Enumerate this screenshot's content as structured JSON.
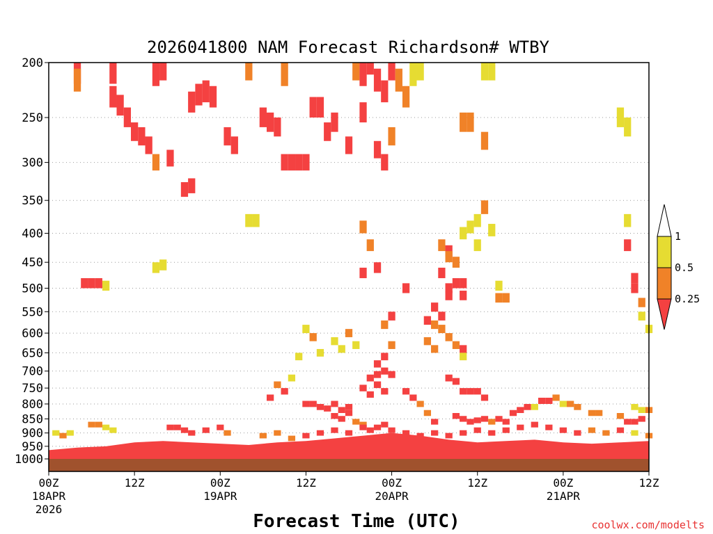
{
  "chart_data": {
    "type": "heatmap",
    "title": "2026041800 NAM Forecast Richardson# WTBY",
    "xlabel": "Forecast Time (UTC)",
    "ylabel": "",
    "credit": "coolwx.com/modelts",
    "x_range_hours": [
      0,
      84
    ],
    "y_range_hpa": [
      200,
      1000
    ],
    "y_scale": "pressure",
    "grid": "dotted horizontal",
    "y_ticks": [
      200,
      250,
      300,
      350,
      400,
      450,
      500,
      550,
      600,
      650,
      700,
      750,
      800,
      850,
      900,
      950,
      1000
    ],
    "y_tick_labels": [
      "200",
      "250",
      "300",
      "350",
      "400",
      "450",
      "500",
      "550",
      "600",
      "650",
      "700",
      "750",
      "800",
      "850",
      "900",
      "950",
      "1000"
    ],
    "x_ticks": [
      {
        "hour": 0,
        "lines": [
          "00Z",
          "18APR",
          "2026"
        ]
      },
      {
        "hour": 12,
        "lines": [
          "12Z"
        ]
      },
      {
        "hour": 24,
        "lines": [
          "00Z",
          "19APR"
        ]
      },
      {
        "hour": 36,
        "lines": [
          "12Z"
        ]
      },
      {
        "hour": 48,
        "lines": [
          "00Z",
          "20APR"
        ]
      },
      {
        "hour": 60,
        "lines": [
          "12Z"
        ]
      },
      {
        "hour": 72,
        "lines": [
          "00Z",
          "21APR"
        ]
      },
      {
        "hour": 84,
        "lines": [
          "12Z"
        ]
      }
    ],
    "legend": {
      "placement": "right",
      "bins": [
        {
          "range": "<0.25",
          "color": "#f44141"
        },
        {
          "range": "0.25-0.5",
          "color": "#f08228"
        },
        {
          "range": "0.5-1",
          "color": "#e6dc32"
        },
        {
          "range": ">1",
          "color": "#ffffff"
        }
      ],
      "labels": [
        "1",
        "0.5",
        "0.25"
      ]
    },
    "surface": {
      "pressure_hpa": 1000,
      "color": "#a0522d"
    },
    "cells": [
      {
        "h": 4,
        "p": 208,
        "c": 1
      },
      {
        "h": 4,
        "p": 215,
        "c": 2
      },
      {
        "h": 9,
        "p": 208,
        "c": 1
      },
      {
        "h": 9,
        "p": 230,
        "c": 1
      },
      {
        "h": 10,
        "p": 238,
        "c": 1
      },
      {
        "h": 11,
        "p": 250,
        "c": 1
      },
      {
        "h": 12,
        "p": 265,
        "c": 1
      },
      {
        "h": 13,
        "p": 270,
        "c": 1
      },
      {
        "h": 14,
        "p": 280,
        "c": 1
      },
      {
        "h": 15,
        "p": 210,
        "c": 1
      },
      {
        "h": 16,
        "p": 205,
        "c": 1
      },
      {
        "h": 15,
        "p": 300,
        "c": 2
      },
      {
        "h": 17,
        "p": 295,
        "c": 1
      },
      {
        "h": 19,
        "p": 335,
        "c": 1
      },
      {
        "h": 20,
        "p": 330,
        "c": 1
      },
      {
        "h": 20,
        "p": 235,
        "c": 1
      },
      {
        "h": 21,
        "p": 228,
        "c": 1
      },
      {
        "h": 22,
        "p": 225,
        "c": 1
      },
      {
        "h": 23,
        "p": 230,
        "c": 1
      },
      {
        "h": 25,
        "p": 270,
        "c": 1
      },
      {
        "h": 26,
        "p": 280,
        "c": 1
      },
      {
        "h": 28,
        "p": 205,
        "c": 2
      },
      {
        "h": 30,
        "p": 250,
        "c": 1
      },
      {
        "h": 31,
        "p": 255,
        "c": 1
      },
      {
        "h": 32,
        "p": 260,
        "c": 1
      },
      {
        "h": 33,
        "p": 210,
        "c": 2
      },
      {
        "h": 33,
        "p": 300,
        "c": 1
      },
      {
        "h": 34,
        "p": 300,
        "c": 1
      },
      {
        "h": 35,
        "p": 300,
        "c": 1
      },
      {
        "h": 36,
        "p": 300,
        "c": 1
      },
      {
        "h": 37,
        "p": 240,
        "c": 1
      },
      {
        "h": 38,
        "p": 240,
        "c": 1
      },
      {
        "h": 39,
        "p": 265,
        "c": 1
      },
      {
        "h": 40,
        "p": 255,
        "c": 1
      },
      {
        "h": 42,
        "p": 280,
        "c": 1
      },
      {
        "h": 44,
        "p": 245,
        "c": 1
      },
      {
        "h": 43,
        "p": 205,
        "c": 2
      },
      {
        "h": 44,
        "p": 210,
        "c": 1
      },
      {
        "h": 45,
        "p": 200,
        "c": 1
      },
      {
        "h": 46,
        "p": 215,
        "c": 1
      },
      {
        "h": 47,
        "p": 225,
        "c": 1
      },
      {
        "h": 48,
        "p": 205,
        "c": 1
      },
      {
        "h": 46,
        "p": 285,
        "c": 1
      },
      {
        "h": 47,
        "p": 300,
        "c": 1
      },
      {
        "h": 48,
        "p": 270,
        "c": 2
      },
      {
        "h": 49,
        "p": 215,
        "c": 2
      },
      {
        "h": 50,
        "p": 230,
        "c": 2
      },
      {
        "h": 51,
        "p": 210,
        "c": 3
      },
      {
        "h": 52,
        "p": 205,
        "c": 3
      },
      {
        "h": 58,
        "p": 255,
        "c": 2
      },
      {
        "h": 59,
        "p": 255,
        "c": 2
      },
      {
        "h": 61,
        "p": 275,
        "c": 2
      },
      {
        "h": 61,
        "p": 205,
        "c": 3
      },
      {
        "h": 62,
        "p": 205,
        "c": 3
      },
      {
        "h": 5,
        "p": 490,
        "c": 1
      },
      {
        "h": 6,
        "p": 490,
        "c": 1
      },
      {
        "h": 7,
        "p": 490,
        "c": 1
      },
      {
        "h": 8,
        "p": 495,
        "c": 3
      },
      {
        "h": 15,
        "p": 460,
        "c": 3
      },
      {
        "h": 16,
        "p": 455,
        "c": 3
      },
      {
        "h": 28,
        "p": 380,
        "c": 3
      },
      {
        "h": 29,
        "p": 380,
        "c": 3
      },
      {
        "h": 44,
        "p": 390,
        "c": 2
      },
      {
        "h": 45,
        "p": 420,
        "c": 2
      },
      {
        "h": 44,
        "p": 470,
        "c": 1
      },
      {
        "h": 46,
        "p": 460,
        "c": 1
      },
      {
        "h": 55,
        "p": 420,
        "c": 2
      },
      {
        "h": 56,
        "p": 430,
        "c": 1
      },
      {
        "h": 55,
        "p": 470,
        "c": 1
      },
      {
        "h": 56,
        "p": 500,
        "c": 1
      },
      {
        "h": 57,
        "p": 490,
        "c": 1
      },
      {
        "h": 58,
        "p": 490,
        "c": 1
      },
      {
        "h": 56,
        "p": 515,
        "c": 1
      },
      {
        "h": 58,
        "p": 515,
        "c": 1
      },
      {
        "h": 56,
        "p": 440,
        "c": 2
      },
      {
        "h": 57,
        "p": 450,
        "c": 2
      },
      {
        "h": 58,
        "p": 400,
        "c": 3
      },
      {
        "h": 59,
        "p": 390,
        "c": 3
      },
      {
        "h": 60,
        "p": 380,
        "c": 3
      },
      {
        "h": 60,
        "p": 420,
        "c": 3
      },
      {
        "h": 61,
        "p": 360,
        "c": 2
      },
      {
        "h": 62,
        "p": 395,
        "c": 3
      },
      {
        "h": 63,
        "p": 520,
        "c": 2
      },
      {
        "h": 64,
        "p": 520,
        "c": 2
      },
      {
        "h": 63,
        "p": 495,
        "c": 3
      },
      {
        "h": 54,
        "p": 540,
        "c": 1
      },
      {
        "h": 55,
        "p": 560,
        "c": 1
      },
      {
        "h": 53,
        "p": 570,
        "c": 1
      },
      {
        "h": 54,
        "p": 580,
        "c": 2
      },
      {
        "h": 55,
        "p": 590,
        "c": 2
      },
      {
        "h": 53,
        "p": 620,
        "c": 2
      },
      {
        "h": 54,
        "p": 640,
        "c": 2
      },
      {
        "h": 56,
        "p": 610,
        "c": 2
      },
      {
        "h": 57,
        "p": 630,
        "c": 2
      },
      {
        "h": 58,
        "p": 640,
        "c": 1
      },
      {
        "h": 58,
        "p": 660,
        "c": 3
      },
      {
        "h": 81,
        "p": 380,
        "c": 3
      },
      {
        "h": 81,
        "p": 420,
        "c": 1
      },
      {
        "h": 82,
        "p": 480,
        "c": 1
      },
      {
        "h": 82,
        "p": 500,
        "c": 1
      },
      {
        "h": 83,
        "p": 530,
        "c": 2
      },
      {
        "h": 83,
        "p": 560,
        "c": 3
      },
      {
        "h": 84,
        "p": 590,
        "c": 3
      },
      {
        "h": 80,
        "p": 250,
        "c": 3
      },
      {
        "h": 81,
        "p": 260,
        "c": 3
      },
      {
        "h": 48,
        "p": 630,
        "c": 2
      },
      {
        "h": 47,
        "p": 660,
        "c": 1
      },
      {
        "h": 46,
        "p": 680,
        "c": 1
      },
      {
        "h": 46,
        "p": 710,
        "c": 1
      },
      {
        "h": 47,
        "p": 700,
        "c": 1
      },
      {
        "h": 48,
        "p": 710,
        "c": 1
      },
      {
        "h": 45,
        "p": 720,
        "c": 1
      },
      {
        "h": 46,
        "p": 740,
        "c": 1
      },
      {
        "h": 47,
        "p": 760,
        "c": 1
      },
      {
        "h": 44,
        "p": 750,
        "c": 1
      },
      {
        "h": 45,
        "p": 770,
        "c": 1
      },
      {
        "h": 48,
        "p": 560,
        "c": 1
      },
      {
        "h": 47,
        "p": 580,
        "c": 2
      },
      {
        "h": 50,
        "p": 500,
        "c": 1
      },
      {
        "h": 42,
        "p": 600,
        "c": 2
      },
      {
        "h": 43,
        "p": 630,
        "c": 3
      },
      {
        "h": 40,
        "p": 620,
        "c": 3
      },
      {
        "h": 41,
        "p": 640,
        "c": 3
      },
      {
        "h": 36,
        "p": 590,
        "c": 3
      },
      {
        "h": 37,
        "p": 610,
        "c": 2
      },
      {
        "h": 38,
        "p": 650,
        "c": 3
      },
      {
        "h": 35,
        "p": 660,
        "c": 3
      },
      {
        "h": 34,
        "p": 720,
        "c": 3
      },
      {
        "h": 33,
        "p": 760,
        "c": 1
      },
      {
        "h": 32,
        "p": 740,
        "c": 2
      },
      {
        "h": 31,
        "p": 780,
        "c": 1
      },
      {
        "h": 36,
        "p": 800,
        "c": 1
      },
      {
        "h": 37,
        "p": 800,
        "c": 1
      },
      {
        "h": 38,
        "p": 810,
        "c": 1
      },
      {
        "h": 39,
        "p": 815,
        "c": 1
      },
      {
        "h": 40,
        "p": 800,
        "c": 1
      },
      {
        "h": 41,
        "p": 820,
        "c": 1
      },
      {
        "h": 42,
        "p": 810,
        "c": 1
      },
      {
        "h": 40,
        "p": 840,
        "c": 1
      },
      {
        "h": 41,
        "p": 850,
        "c": 1
      },
      {
        "h": 42,
        "p": 830,
        "c": 1
      },
      {
        "h": 43,
        "p": 860,
        "c": 2
      },
      {
        "h": 44,
        "p": 870,
        "c": 2
      },
      {
        "h": 50,
        "p": 760,
        "c": 1
      },
      {
        "h": 51,
        "p": 780,
        "c": 1
      },
      {
        "h": 52,
        "p": 800,
        "c": 2
      },
      {
        "h": 53,
        "p": 830,
        "c": 2
      },
      {
        "h": 54,
        "p": 860,
        "c": 1
      },
      {
        "h": 56,
        "p": 720,
        "c": 1
      },
      {
        "h": 57,
        "p": 730,
        "c": 1
      },
      {
        "h": 58,
        "p": 760,
        "c": 1
      },
      {
        "h": 59,
        "p": 760,
        "c": 1
      },
      {
        "h": 60,
        "p": 760,
        "c": 1
      },
      {
        "h": 61,
        "p": 780,
        "c": 1
      },
      {
        "h": 57,
        "p": 840,
        "c": 1
      },
      {
        "h": 58,
        "p": 850,
        "c": 1
      },
      {
        "h": 59,
        "p": 860,
        "c": 1
      },
      {
        "h": 60,
        "p": 855,
        "c": 1
      },
      {
        "h": 61,
        "p": 850,
        "c": 1
      },
      {
        "h": 62,
        "p": 860,
        "c": 2
      },
      {
        "h": 63,
        "p": 850,
        "c": 1
      },
      {
        "h": 64,
        "p": 860,
        "c": 1
      },
      {
        "h": 65,
        "p": 830,
        "c": 1
      },
      {
        "h": 66,
        "p": 820,
        "c": 1
      },
      {
        "h": 67,
        "p": 810,
        "c": 1
      },
      {
        "h": 68,
        "p": 810,
        "c": 3
      },
      {
        "h": 69,
        "p": 790,
        "c": 1
      },
      {
        "h": 70,
        "p": 790,
        "c": 1
      },
      {
        "h": 71,
        "p": 780,
        "c": 2
      },
      {
        "h": 72,
        "p": 800,
        "c": 3
      },
      {
        "h": 73,
        "p": 800,
        "c": 2
      },
      {
        "h": 74,
        "p": 810,
        "c": 2
      },
      {
        "h": 76,
        "p": 830,
        "c": 2
      },
      {
        "h": 77,
        "p": 830,
        "c": 2
      },
      {
        "h": 80,
        "p": 840,
        "c": 2
      },
      {
        "h": 81,
        "p": 860,
        "c": 1
      },
      {
        "h": 82,
        "p": 860,
        "c": 1
      },
      {
        "h": 83,
        "p": 850,
        "c": 1
      },
      {
        "h": 84,
        "p": 820,
        "c": 2
      },
      {
        "h": 82,
        "p": 810,
        "c": 3
      },
      {
        "h": 83,
        "p": 820,
        "c": 3
      },
      {
        "h": 1,
        "p": 900,
        "c": 3
      },
      {
        "h": 2,
        "p": 910,
        "c": 2
      },
      {
        "h": 3,
        "p": 900,
        "c": 3
      },
      {
        "h": 6,
        "p": 870,
        "c": 2
      },
      {
        "h": 7,
        "p": 870,
        "c": 2
      },
      {
        "h": 8,
        "p": 880,
        "c": 3
      },
      {
        "h": 9,
        "p": 890,
        "c": 3
      },
      {
        "h": 17,
        "p": 880,
        "c": 1
      },
      {
        "h": 18,
        "p": 880,
        "c": 1
      },
      {
        "h": 19,
        "p": 890,
        "c": 1
      },
      {
        "h": 20,
        "p": 900,
        "c": 1
      },
      {
        "h": 22,
        "p": 890,
        "c": 1
      },
      {
        "h": 24,
        "p": 880,
        "c": 1
      },
      {
        "h": 25,
        "p": 900,
        "c": 2
      },
      {
        "h": 30,
        "p": 910,
        "c": 2
      },
      {
        "h": 32,
        "p": 900,
        "c": 2
      },
      {
        "h": 34,
        "p": 920,
        "c": 2
      },
      {
        "h": 36,
        "p": 910,
        "c": 1
      },
      {
        "h": 38,
        "p": 900,
        "c": 1
      },
      {
        "h": 40,
        "p": 890,
        "c": 1
      },
      {
        "h": 42,
        "p": 900,
        "c": 1
      },
      {
        "h": 44,
        "p": 880,
        "c": 1
      },
      {
        "h": 45,
        "p": 890,
        "c": 1
      },
      {
        "h": 46,
        "p": 880,
        "c": 1
      },
      {
        "h": 47,
        "p": 870,
        "c": 1
      },
      {
        "h": 48,
        "p": 890,
        "c": 1
      },
      {
        "h": 50,
        "p": 900,
        "c": 1
      },
      {
        "h": 52,
        "p": 910,
        "c": 1
      },
      {
        "h": 54,
        "p": 900,
        "c": 1
      },
      {
        "h": 56,
        "p": 910,
        "c": 1
      },
      {
        "h": 58,
        "p": 900,
        "c": 1
      },
      {
        "h": 60,
        "p": 890,
        "c": 1
      },
      {
        "h": 62,
        "p": 900,
        "c": 1
      },
      {
        "h": 64,
        "p": 890,
        "c": 1
      },
      {
        "h": 66,
        "p": 880,
        "c": 1
      },
      {
        "h": 68,
        "p": 870,
        "c": 1
      },
      {
        "h": 70,
        "p": 880,
        "c": 1
      },
      {
        "h": 72,
        "p": 890,
        "c": 1
      },
      {
        "h": 74,
        "p": 900,
        "c": 1
      },
      {
        "h": 76,
        "p": 890,
        "c": 2
      },
      {
        "h": 78,
        "p": 900,
        "c": 2
      },
      {
        "h": 80,
        "p": 890,
        "c": 1
      },
      {
        "h": 82,
        "p": 900,
        "c": 3
      },
      {
        "h": 84,
        "p": 910,
        "c": 2
      }
    ],
    "near_surface_band": [
      {
        "h": 0,
        "top": 965
      },
      {
        "h": 4,
        "top": 955
      },
      {
        "h": 8,
        "top": 950
      },
      {
        "h": 12,
        "top": 935
      },
      {
        "h": 16,
        "top": 930
      },
      {
        "h": 20,
        "top": 935
      },
      {
        "h": 24,
        "top": 940
      },
      {
        "h": 28,
        "top": 945
      },
      {
        "h": 32,
        "top": 935
      },
      {
        "h": 36,
        "top": 930
      },
      {
        "h": 40,
        "top": 920
      },
      {
        "h": 44,
        "top": 910
      },
      {
        "h": 48,
        "top": 900
      },
      {
        "h": 52,
        "top": 910
      },
      {
        "h": 56,
        "top": 925
      },
      {
        "h": 60,
        "top": 935
      },
      {
        "h": 64,
        "top": 930
      },
      {
        "h": 68,
        "top": 925
      },
      {
        "h": 72,
        "top": 935
      },
      {
        "h": 76,
        "top": 940
      },
      {
        "h": 80,
        "top": 935
      },
      {
        "h": 84,
        "top": 930
      }
    ]
  }
}
